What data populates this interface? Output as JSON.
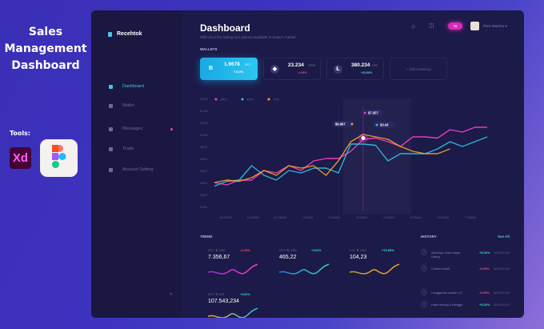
{
  "promo": {
    "title_lines": [
      "Sales",
      "Management",
      "Dashboard"
    ],
    "tools_label": "Tools:",
    "xd_label": "Xd"
  },
  "app": {
    "logo": "Recehtok",
    "title": "Dashboard",
    "subtitle": "With all of the styling tool options available in today's market",
    "notifications": "15",
    "user": "Pixsi Warriox"
  },
  "sidebar": {
    "items": [
      {
        "label": "Dashboard",
        "active": true
      },
      {
        "label": "Wallet"
      },
      {
        "label": "Messages",
        "dot": true
      },
      {
        "label": "Trade"
      },
      {
        "label": "Account Setting"
      }
    ]
  },
  "wallets": {
    "label": "WALLETS",
    "items": [
      {
        "icon": "B",
        "value": "1.9678",
        "unit": "BTC",
        "change": "+13,5%"
      },
      {
        "icon": "◆",
        "value": "23.234",
        "unit": "ETH",
        "change": "-4.25%"
      },
      {
        "icon": "Ł",
        "value": "380.234",
        "unit": "LTC",
        "change": "+33.68%"
      }
    ],
    "add": "+ Add Currency"
  },
  "chart_data": {
    "type": "line",
    "y_ticks": [
      "6.500",
      "6.000",
      "5.500",
      "5.000",
      "4500",
      "4000",
      "3500",
      "3000",
      "2500",
      "2000"
    ],
    "ylim": [
      2000,
      6500
    ],
    "x_ticks": [
      "10:00PM",
      "11:00PM",
      "12:00AM",
      "1:00AM",
      "2:00AM",
      "3:00AM",
      "4:00AM",
      "5:00AM",
      "6:00AM",
      "7:00AM"
    ],
    "legend": [
      "BTC",
      "ETH",
      "LTC"
    ],
    "colors": {
      "BTC": "#ff3ec8",
      "ETH": "#2cc4e8",
      "LTC": "#f5a623"
    },
    "series": [
      {
        "name": "BTC",
        "values": [
          3000,
          2900,
          3100,
          3100,
          3500,
          3400,
          3700,
          3500,
          3900,
          4000,
          4000,
          4300,
          4800,
          4850,
          4700,
          4500,
          4900,
          4900,
          4850,
          5200,
          5100,
          5300,
          5300
        ]
      },
      {
        "name": "ETH",
        "values": [
          2850,
          3050,
          3100,
          3700,
          3300,
          3100,
          3500,
          3400,
          3600,
          3600,
          3400,
          4600,
          4600,
          4550,
          3900,
          4200,
          4200,
          4200,
          4400,
          4700,
          4500,
          4700,
          4900
        ]
      },
      {
        "name": "LTC",
        "values": [
          3000,
          3100,
          3050,
          3200,
          3500,
          3300,
          3700,
          3600,
          3700,
          3300,
          3900,
          4700,
          5000,
          4900,
          4800,
          4500,
          4300,
          4200,
          4200,
          4400,
          null,
          null,
          null
        ]
      }
    ],
    "tooltips": [
      {
        "series": "LTC",
        "label": "$6.967"
      },
      {
        "series": "BTC",
        "label": "$7.357"
      },
      {
        "series": "ETH",
        "label": "$3.43"
      }
    ]
  },
  "trend": {
    "label": "TREND",
    "items": [
      {
        "pair": "BTC  ⇅  USD",
        "change": "-6.25%",
        "value": "7.356,67",
        "color": "#ff4d6d"
      },
      {
        "pair": "ETH  ⇅  USD",
        "change": "+132%",
        "value": "465,22",
        "color": "#2ee6b6"
      },
      {
        "pair": "LTC  ⇅  USD",
        "change": "+75.89%",
        "value": "104,23",
        "color": "#2ee6b6"
      },
      {
        "pair": "BTC  ⇅  IDR",
        "change": "+132%",
        "value": "107.543,234",
        "color": "#2ee6b6"
      }
    ]
  },
  "history": {
    "label": "HISTORY",
    "see_all": "See All",
    "items": [
      {
        "n": "3",
        "text": "Akhirnya Joko bayar Utang",
        "change": "+8.02%",
        "date": "08/29/2018"
      },
      {
        "n": "4",
        "text": "Cicilan mobil",
        "change": "-6.25%",
        "date": "08/29/2018"
      },
      {
        "n": "4",
        "text": "Langganan adobe CC",
        "change": "-6.25%",
        "date": "08/29/2018"
      },
      {
        "n": "3",
        "text": "Hasil mining 3 minggu",
        "change": "+8.02%",
        "date": "08/29/2018"
      }
    ]
  }
}
